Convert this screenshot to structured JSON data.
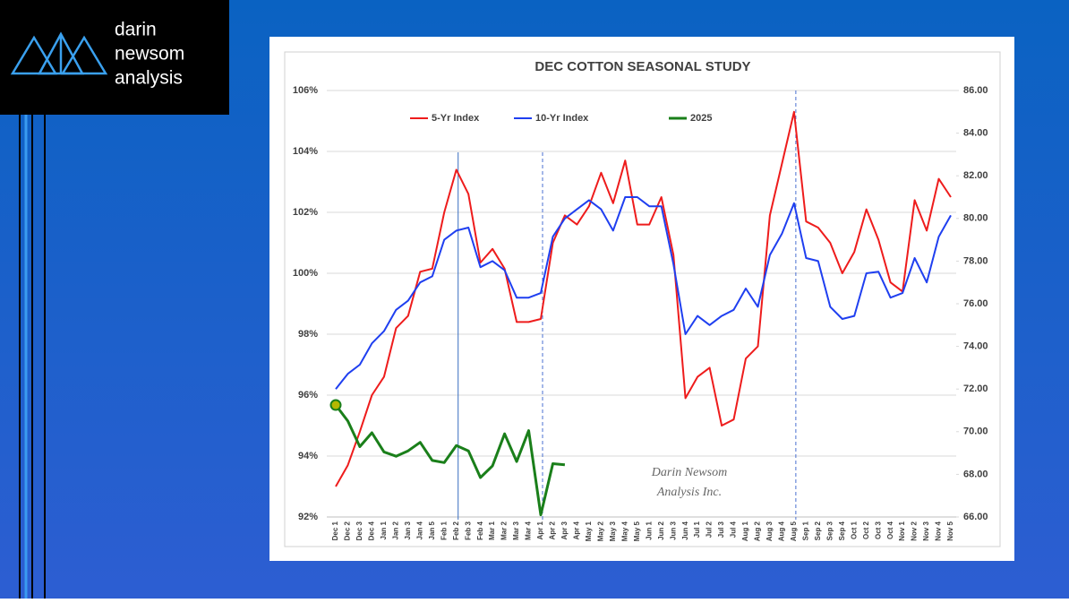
{
  "logo": {
    "lines": [
      "darin",
      "newsom",
      "analysis"
    ]
  },
  "chart_data": {
    "type": "line",
    "title": "DEC COTTON SEASONAL STUDY",
    "categories": [
      "Dec 1",
      "Dec 2",
      "Dec 3",
      "Dec 4",
      "Jan 1",
      "Jan 2",
      "Jan 3",
      "Jan 4",
      "Jan 5",
      "Feb 1",
      "Feb 2",
      "Feb 3",
      "Feb 4",
      "Mar 1",
      "Mar 2",
      "Mar 3",
      "Mar 4",
      "Apr 1",
      "Apr 2",
      "Apr 3",
      "Apr 4",
      "May 1",
      "May 2",
      "May 3",
      "May 4",
      "May 5",
      "Jun 1",
      "Jun 2",
      "Jun 3",
      "Jun 4",
      "Jul 1",
      "Jul 2",
      "Jul 3",
      "Jul 4",
      "Aug 1",
      "Aug 2",
      "Aug 3",
      "Aug 4",
      "Aug 5",
      "Sep 1",
      "Sep 2",
      "Sep 3",
      "Sep 4",
      "Oct 1",
      "Oct 2",
      "Oct 3",
      "Oct 4",
      "Nov 1",
      "Nov 2",
      "Nov 3",
      "Nov 4",
      "Nov 5"
    ],
    "series": [
      {
        "name": "5-Yr Index",
        "color": "#ee1c1c",
        "values": [
          93.0,
          93.7,
          94.8,
          96.0,
          96.6,
          98.2,
          98.6,
          100.05,
          100.15,
          102.0,
          103.4,
          102.6,
          100.35,
          100.8,
          100.15,
          98.4,
          98.4,
          98.5,
          101.0,
          101.9,
          101.6,
          102.2,
          103.3,
          102.3,
          103.7,
          101.6,
          101.6,
          102.5,
          100.6,
          95.9,
          96.6,
          96.9,
          95.0,
          95.2,
          97.2,
          97.6,
          101.9,
          103.6,
          105.3,
          101.7,
          101.5,
          101.0,
          100.0,
          100.7,
          102.1,
          101.1,
          99.7,
          99.4,
          102.4,
          101.4,
          103.1,
          102.5
        ]
      },
      {
        "name": "10-Yr Index",
        "color": "#1f3ff0",
        "values": [
          96.2,
          96.7,
          97.0,
          97.7,
          98.1,
          98.8,
          99.1,
          99.7,
          99.9,
          101.1,
          101.4,
          101.5,
          100.2,
          100.4,
          100.1,
          99.2,
          99.2,
          99.35,
          101.2,
          101.8,
          102.1,
          102.4,
          102.1,
          101.4,
          102.5,
          102.5,
          102.2,
          102.2,
          100.3,
          98.0,
          98.6,
          98.3,
          98.6,
          98.8,
          99.5,
          98.9,
          100.6,
          101.3,
          102.3,
          100.5,
          100.4,
          98.9,
          98.5,
          98.6,
          100.0,
          100.05,
          99.2,
          99.35,
          100.5,
          99.7,
          101.2,
          101.9
        ]
      },
      {
        "name": "2025",
        "color": "#1a7f1a",
        "axis": "y2",
        "values": [
          71.25,
          70.5,
          69.3,
          69.95,
          69.05,
          68.85,
          69.1,
          69.5,
          68.65,
          68.55,
          69.35,
          69.1,
          67.85,
          68.4,
          69.9,
          68.6,
          70.05,
          66.1,
          68.5,
          68.45,
          null,
          null,
          null,
          null,
          null,
          null,
          null,
          null,
          null,
          null,
          null,
          null,
          null,
          null,
          null,
          null,
          null,
          null,
          null,
          null,
          null,
          null,
          null,
          null,
          null,
          null,
          null,
          null,
          null,
          null,
          null,
          null
        ]
      }
    ],
    "ylim": [
      92,
      106
    ],
    "yticks": [
      {
        "value": 92,
        "label": "92%"
      },
      {
        "value": 94,
        "label": "94%"
      },
      {
        "value": 96,
        "label": "96%"
      },
      {
        "value": 98,
        "label": "98%"
      },
      {
        "value": 100,
        "label": "100%"
      },
      {
        "value": 102,
        "label": "102%"
      },
      {
        "value": 104,
        "label": "104%"
      },
      {
        "value": 106,
        "label": "106%"
      }
    ],
    "y2lim": [
      66,
      86
    ],
    "y2ticks": [
      {
        "value": 66,
        "label": "66.00"
      },
      {
        "value": 68,
        "label": "68.00"
      },
      {
        "value": 70,
        "label": "70.00"
      },
      {
        "value": 72,
        "label": "72.00"
      },
      {
        "value": 74,
        "label": "74.00"
      },
      {
        "value": 76,
        "label": "76.00"
      },
      {
        "value": 78,
        "label": "78.00"
      },
      {
        "value": 80,
        "label": "80.00"
      },
      {
        "value": 82,
        "label": "82.00"
      },
      {
        "value": 84,
        "label": "84.00"
      },
      {
        "value": 86,
        "label": "86.00"
      }
    ],
    "grid": true,
    "legend": "top",
    "reference_lines": [
      {
        "at": "Feb 2",
        "style": "solid"
      },
      {
        "at": "Apr 1",
        "style": "dashed"
      },
      {
        "at": "Aug 5",
        "style": "dashed"
      }
    ],
    "annotations": [
      "Darin Newsom",
      "Analysis Inc."
    ]
  }
}
